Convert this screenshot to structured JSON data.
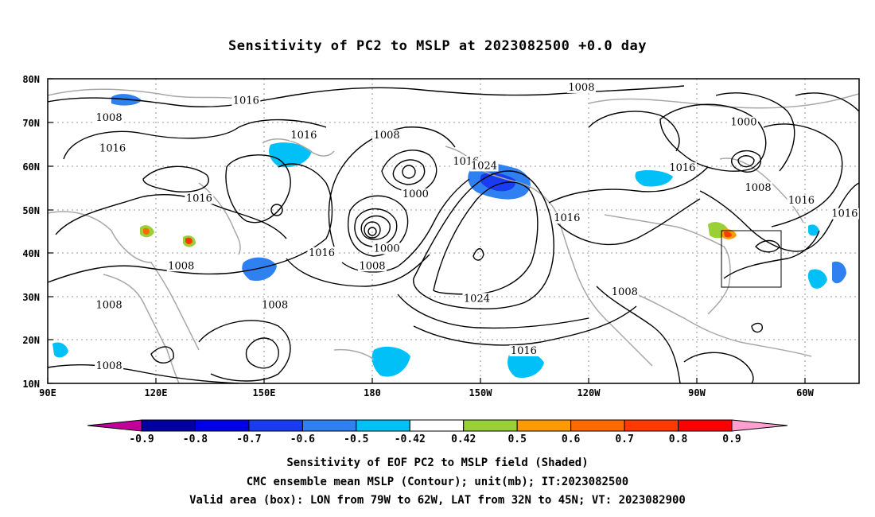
{
  "title": "Sensitivity of PC2 to MSLP at 2023082500 +0.0 day",
  "lat_labels": [
    "80N",
    "70N",
    "60N",
    "50N",
    "40N",
    "30N",
    "20N",
    "10N"
  ],
  "lon_labels": [
    "90E",
    "120E",
    "150E",
    "180",
    "150W",
    "120W",
    "90W",
    "60W"
  ],
  "contour_labels": [
    {
      "text": "1016",
      "lon": 145,
      "lat": 75
    },
    {
      "text": "1008",
      "lon": 107,
      "lat": 71
    },
    {
      "text": "1016",
      "lon": 108,
      "lat": 64
    },
    {
      "text": "1016",
      "lon": 161,
      "lat": 67
    },
    {
      "text": "1008",
      "lon": -176,
      "lat": 67
    },
    {
      "text": "1000",
      "lon": -168,
      "lat": 53.5
    },
    {
      "text": "1016",
      "lon": -154,
      "lat": 61
    },
    {
      "text": "1024",
      "lon": -149,
      "lat": 60
    },
    {
      "text": "1016",
      "lon": 132,
      "lat": 52.5
    },
    {
      "text": "1016",
      "lon": 166,
      "lat": 40
    },
    {
      "text": "1000",
      "lon": -176,
      "lat": 41
    },
    {
      "text": "1008",
      "lon": -180,
      "lat": 37
    },
    {
      "text": "1024",
      "lon": -151,
      "lat": 29.5
    },
    {
      "text": "1008",
      "lon": 127,
      "lat": 37
    },
    {
      "text": "1008",
      "lon": 107,
      "lat": 28
    },
    {
      "text": "1008",
      "lon": 153,
      "lat": 28
    },
    {
      "text": "1008",
      "lon": 107,
      "lat": 14
    },
    {
      "text": "1016",
      "lon": -138,
      "lat": 17.5
    },
    {
      "text": "1008",
      "lon": -122,
      "lat": 78
    },
    {
      "text": "1016",
      "lon": -126,
      "lat": 48
    },
    {
      "text": "1016",
      "lon": -94,
      "lat": 59.5
    },
    {
      "text": "1000",
      "lon": -77,
      "lat": 70
    },
    {
      "text": "1008",
      "lon": -73,
      "lat": 55
    },
    {
      "text": "1016",
      "lon": -61,
      "lat": 52
    },
    {
      "text": "1016",
      "lon": -49,
      "lat": 49
    },
    {
      "text": "1008",
      "lon": -110,
      "lat": 31
    }
  ],
  "colorbar": {
    "labels": [
      "-0.9",
      "-0.8",
      "-0.7",
      "-0.6",
      "-0.5",
      "-0.42",
      "0.42",
      "0.5",
      "0.6",
      "0.7",
      "0.8",
      "0.9"
    ],
    "colors": [
      "#0000a0",
      "#0000e6",
      "#1a3cf0",
      "#2f80f0",
      "#00c0f8",
      "#ffffff",
      "#9ad037",
      "#ff9b00",
      "#ff6a00",
      "#ff3a00",
      "#ff0000"
    ],
    "low_end": "#c0009a",
    "high_end": "#ff9fd0"
  },
  "valid_box": {
    "lon_west": -79,
    "lon_east": -62,
    "lat_south": 32,
    "lat_north": 45
  },
  "captions": [
    "Sensitivity of EOF PC2 to MSLP field (Shaded)",
    "CMC ensemble mean MSLP (Contour); unit(mb); IT:2023082500",
    "Valid area (box): LON from 79W to 62W, LAT from 32N to 45N; VT: 2023082900"
  ]
}
